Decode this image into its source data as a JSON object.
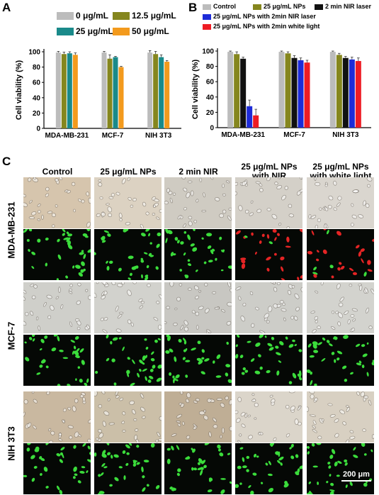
{
  "panels": {
    "a": "A",
    "b": "B",
    "c": "C"
  },
  "chart_data": [
    {
      "type": "bar",
      "panel": "A",
      "ylabel": "Cell viability (%)",
      "xlabel": "",
      "ylim": [
        0,
        100
      ],
      "yticks": [
        0,
        20,
        40,
        60,
        80,
        100
      ],
      "categories": [
        "MDA-MB-231",
        "MCF-7",
        "NIH 3T3"
      ],
      "legend": "top",
      "grid": false,
      "series": [
        {
          "name": "0 μg/mL",
          "color": "#bcbcbc",
          "values": [
            99,
            99,
            99
          ],
          "errors": [
            1.5,
            1.5,
            2.5
          ]
        },
        {
          "name": "12.5 μg/mL",
          "color": "#85861e",
          "values": [
            97,
            91,
            97
          ],
          "errors": [
            2.5,
            5,
            3.5
          ]
        },
        {
          "name": "25 μg/mL",
          "color": "#1a8a8a",
          "values": [
            98,
            93,
            93
          ],
          "errors": [
            2,
            1,
            3
          ]
        },
        {
          "name": "50 μg/mL",
          "color": "#f39a1d",
          "values": [
            96,
            80,
            87
          ],
          "errors": [
            2.5,
            1,
            1.5
          ]
        }
      ]
    },
    {
      "type": "bar",
      "panel": "B",
      "ylabel": "Cell viability (%)",
      "xlabel": "",
      "ylim": [
        0,
        100
      ],
      "yticks": [
        0,
        20,
        40,
        60,
        80,
        100
      ],
      "categories": [
        "MDA-MB-231",
        "MCF-7",
        "NIH 3T3"
      ],
      "legend": "top",
      "grid": false,
      "series": [
        {
          "name": "Control",
          "color": "#bcbcbc",
          "values": [
            99,
            99,
            99
          ],
          "errors": [
            1,
            1,
            1
          ]
        },
        {
          "name": "25 μg/mL NPs",
          "color": "#85861e",
          "values": [
            96,
            97,
            95
          ],
          "errors": [
            3,
            2,
            2
          ]
        },
        {
          "name": "2 min NIR laser",
          "color": "#111111",
          "values": [
            90,
            91,
            91
          ],
          "errors": [
            2,
            3,
            2
          ]
        },
        {
          "name": "25 μg/mL NPs with 2min NIR laser",
          "color": "#1d2bd8",
          "values": [
            28,
            88,
            89
          ],
          "errors": [
            8,
            3,
            3
          ]
        },
        {
          "name": "25 μg/mL NPs with 2min white light",
          "color": "#ee1c24",
          "values": [
            16,
            85,
            87
          ],
          "errors": [
            8,
            3,
            4
          ]
        }
      ]
    }
  ],
  "micrographs": {
    "columns": [
      "Control",
      "25 μg/mL NPs",
      "2 min NIR",
      "25 μg/mL NPs with NIR",
      "25 μg/mL NPs with white light"
    ],
    "rows": [
      "MDA-MB-231",
      "MCF-7",
      "NIH 3T3"
    ],
    "scale_bar": "200 μm",
    "colors": {
      "brightfield": "#cfcabf",
      "fluor_bg": "#050805",
      "live": "#3bdc3b",
      "dead": "#e42424"
    }
  }
}
